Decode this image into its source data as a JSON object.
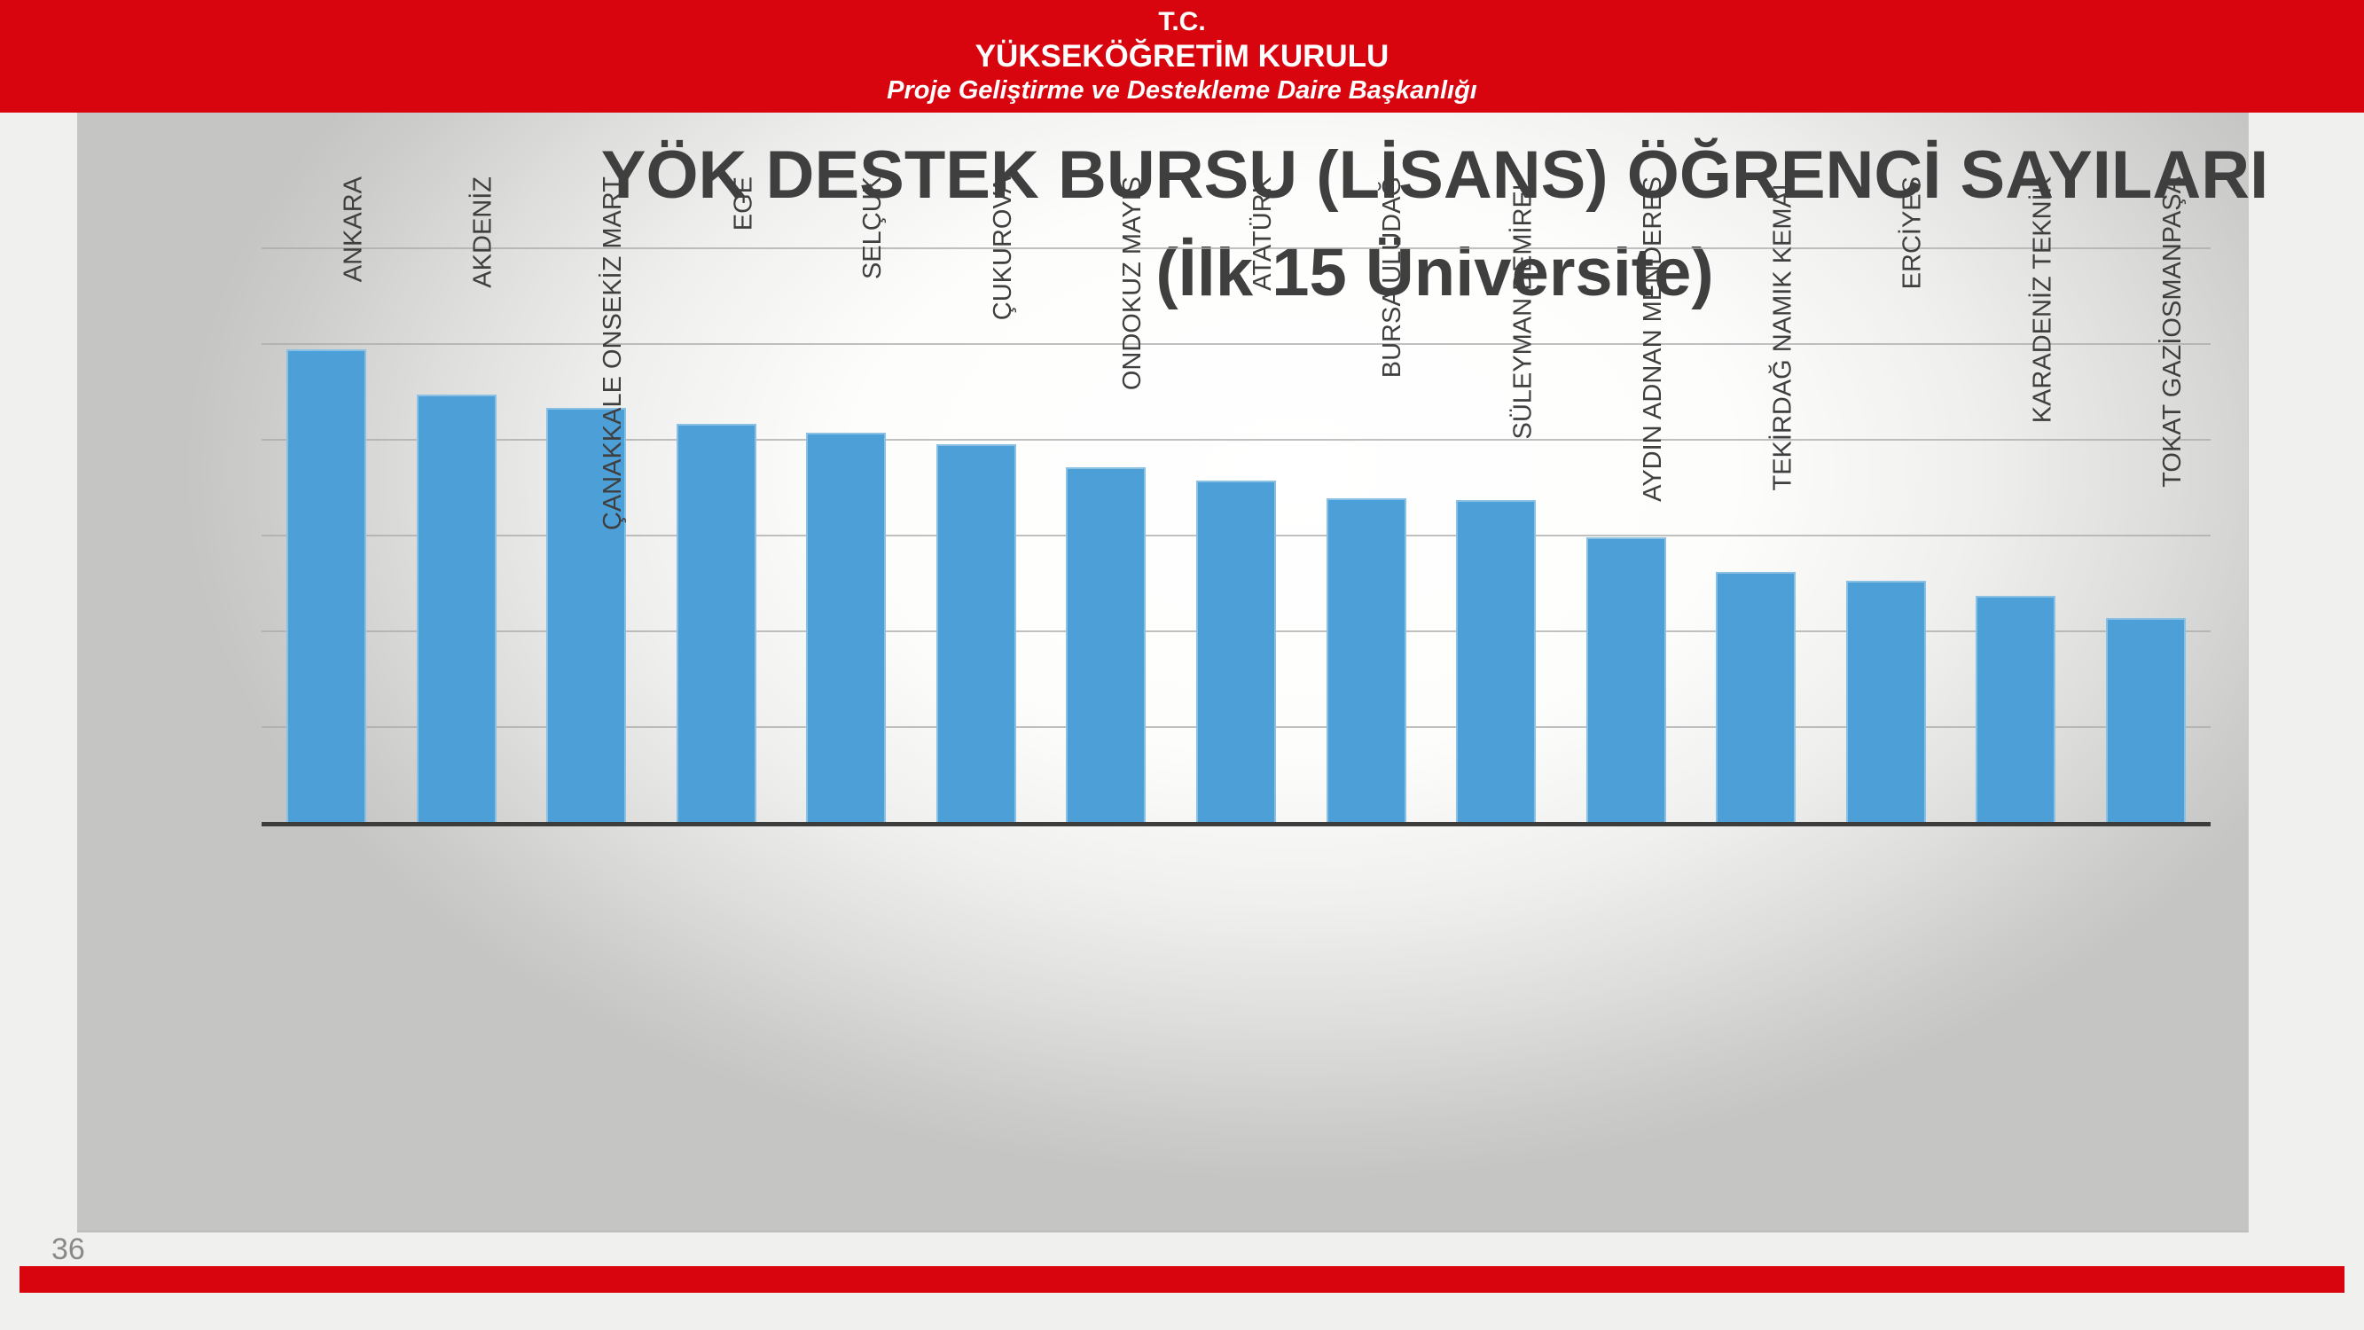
{
  "header": {
    "line1": "T.C.",
    "line2": "YÜKSEKÖĞRETİM KURULU",
    "line3": "Proje Geliştirme ve Destekleme Daire Başkanlığı",
    "background_color": "#d8050f",
    "text_color": "#ffffff"
  },
  "chart_data": {
    "type": "bar",
    "title": "YÖK DESTEK BURSU (LİSANS) ÖĞRENCİ SAYILARI",
    "subtitle": "(İlk 15 Üniversite)",
    "categories": [
      "ANKARA",
      "AKDENİZ",
      "ÇANAKKALE ONSEKİZ MART",
      "EGE",
      "SELÇUK",
      "ÇUKUROVA",
      "ONDOKUZ MAYIS",
      "ATATÜRK",
      "BURSA ULUDAĞ",
      "SÜLEYMAN DEMİREL",
      "AYDIN ADNAN MENDERES",
      "TEKİRDAĞ NAMIK KEMAL",
      "ERCİYES",
      "KARADENİZ TEKNİK",
      "TOKAT GAZİOSMANPAŞA"
    ],
    "values": [
      495,
      448,
      434,
      418,
      408,
      396,
      372,
      358,
      340,
      338,
      299,
      263,
      254,
      238,
      215
    ],
    "values_are_estimates": true,
    "value_axis_labels_visible": false,
    "gridline_values": [
      100,
      200,
      300,
      400,
      500,
      600
    ],
    "ylim": [
      0,
      700
    ],
    "grid": "horizontal",
    "legend": "none",
    "bar_color": "#4d9fd8",
    "gridline_color": "#ababab",
    "axis_color": "#3d3d3d",
    "title_color": "#3f3f3f"
  },
  "footer": {
    "page_number": "36",
    "bar_color": "#d8050f"
  }
}
